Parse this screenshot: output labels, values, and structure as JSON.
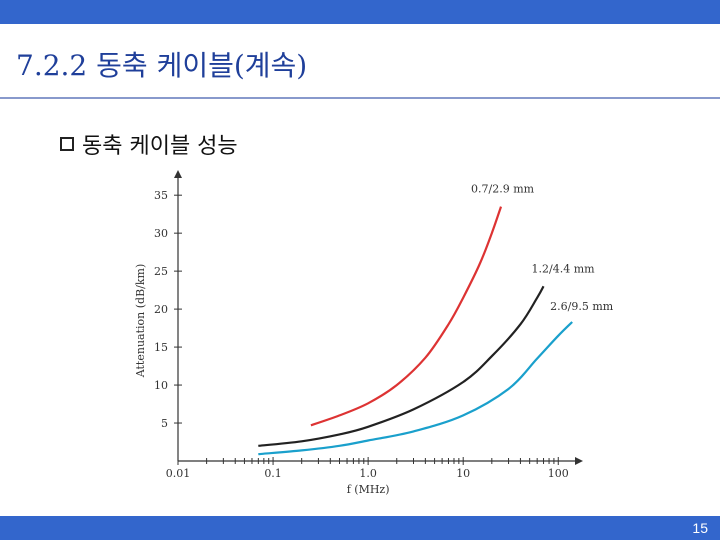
{
  "slide": {
    "title": "7.2.2 동축 케이블(계속)",
    "bullet": "동축 케이블 성능",
    "page_number": "15"
  },
  "colors": {
    "bar": "#3366cc",
    "title": "#1f3f9a"
  },
  "chart_data": {
    "type": "line",
    "xlabel": "f (MHz)",
    "ylabel": "Attenuation (dB/km)",
    "x_scale": "log",
    "xlim": [
      0.01,
      150
    ],
    "ylim": [
      0,
      37
    ],
    "x_ticks": [
      {
        "value": 0.01,
        "label": "0.01"
      },
      {
        "value": 0.1,
        "label": "0.1"
      },
      {
        "value": 1.0,
        "label": "1.0"
      },
      {
        "value": 10,
        "label": "10"
      },
      {
        "value": 100,
        "label": "100"
      }
    ],
    "y_ticks": [
      {
        "value": 5,
        "label": "5"
      },
      {
        "value": 10,
        "label": "10"
      },
      {
        "value": 15,
        "label": "15"
      },
      {
        "value": 20,
        "label": "20"
      },
      {
        "value": 25,
        "label": "25"
      },
      {
        "value": 30,
        "label": "30"
      },
      {
        "value": 35,
        "label": "35"
      }
    ],
    "grid": false,
    "series": [
      {
        "name": "0.7/2.9 mm",
        "color": "#dd3333",
        "points": [
          [
            0.25,
            4.7
          ],
          [
            0.5,
            6.0
          ],
          [
            1,
            7.6
          ],
          [
            2,
            10.0
          ],
          [
            4,
            13.6
          ],
          [
            7,
            18.0
          ],
          [
            10,
            21.5
          ],
          [
            15,
            26.0
          ],
          [
            20,
            30.0
          ],
          [
            25,
            33.5
          ]
        ]
      },
      {
        "name": "1.2/4.4 mm",
        "color": "#222222",
        "points": [
          [
            0.07,
            2.0
          ],
          [
            0.2,
            2.6
          ],
          [
            0.5,
            3.5
          ],
          [
            1,
            4.5
          ],
          [
            3,
            6.8
          ],
          [
            10,
            10.4
          ],
          [
            20,
            13.8
          ],
          [
            40,
            18.0
          ],
          [
            60,
            21.5
          ],
          [
            70,
            23.0
          ]
        ]
      },
      {
        "name": "2.6/9.5 mm",
        "color": "#1aa0cc",
        "points": [
          [
            0.07,
            0.9
          ],
          [
            0.2,
            1.4
          ],
          [
            0.5,
            2.0
          ],
          [
            1,
            2.7
          ],
          [
            3,
            3.9
          ],
          [
            10,
            6.0
          ],
          [
            30,
            9.5
          ],
          [
            60,
            13.5
          ],
          [
            100,
            16.5
          ],
          [
            140,
            18.3
          ]
        ]
      }
    ]
  }
}
